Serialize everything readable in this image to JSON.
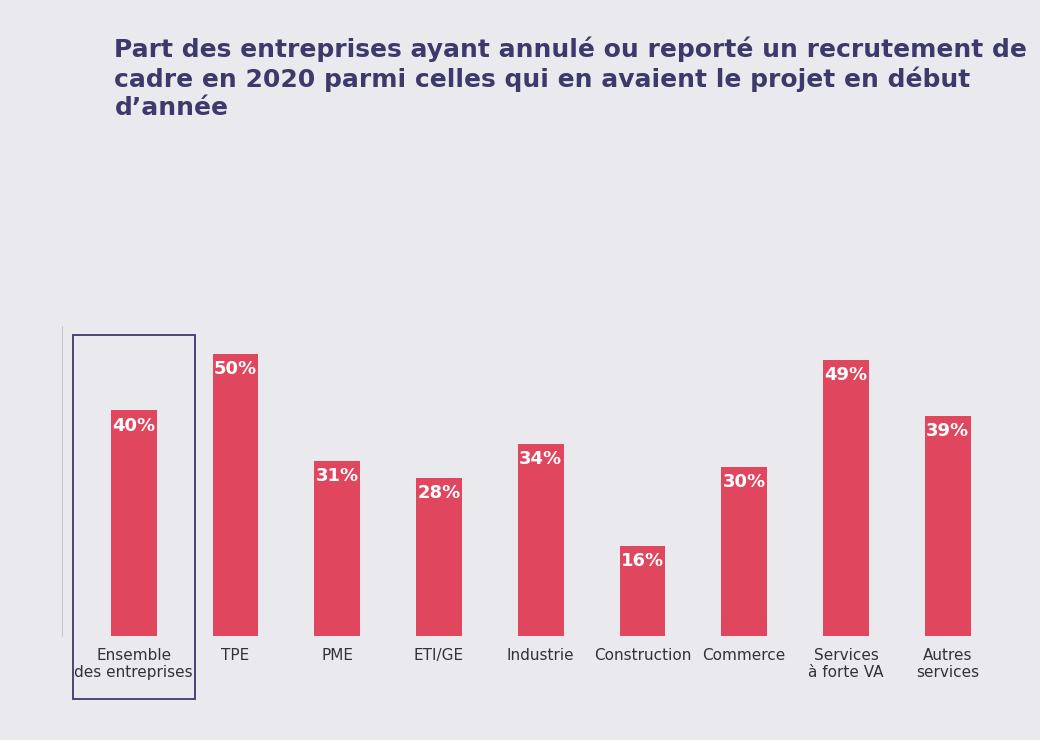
{
  "chart_data": {
    "type": "bar",
    "title": "Part des entreprises ayant annulé ou reporté un recrutement de cadre en 2020 parmi celles qui en avaient le projet en début d’année",
    "categories": [
      "Ensemble\ndes entreprises",
      "TPE",
      "PME",
      "ETI/GE",
      "Industrie",
      "Construction",
      "Commerce",
      "Services\nà forte VA",
      "Autres\nservices"
    ],
    "values": [
      40,
      50,
      31,
      28,
      34,
      16,
      30,
      49,
      39
    ],
    "value_labels": [
      "40%",
      "50%",
      "31%",
      "28%",
      "34%",
      "16%",
      "30%",
      "49%",
      "39%"
    ],
    "color": "#e0475f",
    "ylim": [
      0,
      55
    ],
    "data_labels": true,
    "tick_labels": "x",
    "grid": false
  }
}
